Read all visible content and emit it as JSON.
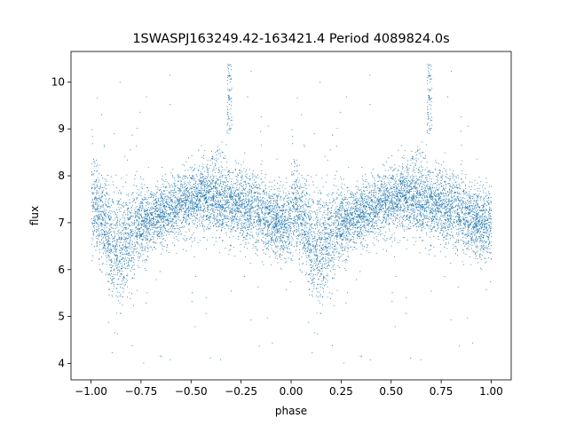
{
  "chart_data": {
    "type": "scatter",
    "title": "1SWASPJ163249.42-163421.4 Period 4089824.0s",
    "xlabel": "phase",
    "ylabel": "flux",
    "xlim": [
      -1.1,
      1.1
    ],
    "ylim": [
      3.65,
      10.65
    ],
    "x_ticks": [
      -1.0,
      -0.75,
      -0.5,
      -0.25,
      0.0,
      0.25,
      0.5,
      0.75,
      1.0
    ],
    "x_tick_labels": [
      "−1.00",
      "−0.75",
      "−0.50",
      "−0.25",
      "0.00",
      "0.25",
      "0.50",
      "0.75",
      "1.00"
    ],
    "y_ticks": [
      4,
      5,
      6,
      7,
      8,
      9,
      10
    ],
    "y_tick_labels": [
      "4",
      "5",
      "6",
      "7",
      "8",
      "9",
      "10"
    ],
    "grid": false,
    "legend": "none",
    "marker_color": "#1f77b4",
    "light_curve_profile": {
      "phase": [
        0.0,
        0.05,
        0.1,
        0.15,
        0.2,
        0.25,
        0.3,
        0.35,
        0.4,
        0.45,
        0.5,
        0.55,
        0.6,
        0.65,
        0.7,
        0.75,
        0.8,
        0.85,
        0.9,
        0.95,
        1.0
      ],
      "flux_median": [
        7.5,
        7.1,
        6.6,
        6.5,
        6.8,
        7.0,
        7.1,
        7.2,
        7.3,
        7.4,
        7.5,
        7.6,
        7.6,
        7.5,
        7.4,
        7.4,
        7.3,
        7.2,
        7.1,
        7.0,
        7.0
      ],
      "flux_spread": [
        0.9,
        0.8,
        1.0,
        1.1,
        0.9,
        0.7,
        0.6,
        0.6,
        0.6,
        0.6,
        0.6,
        0.7,
        0.8,
        0.8,
        0.7,
        0.7,
        0.7,
        0.7,
        0.7,
        0.7,
        0.8
      ]
    },
    "spike_feature": {
      "phase": 0.69,
      "flux_range": [
        8.9,
        10.4
      ]
    },
    "period_s": 4089824.0
  }
}
